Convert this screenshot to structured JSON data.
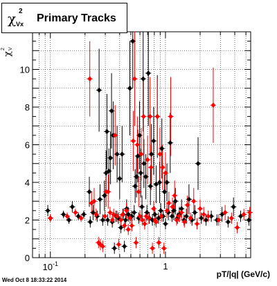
{
  "title": {
    "chi": "χ",
    "sup": "2",
    "sub": "Vx",
    "text": "Primary Tracks"
  },
  "ylabel": {
    "chi": "χ",
    "sup": "2",
    "sub": "V"
  },
  "xlabel": "pT/|q| (GeV/c)",
  "footer": "Wed Oct  8 18:33:22 2014",
  "chart_data": {
    "type": "scatter",
    "xscale": "log",
    "xlim": [
      0.07,
      5.5
    ],
    "ylim": [
      0,
      12
    ],
    "grid": true,
    "x_tick_labels": [
      {
        "x": 0.1,
        "label": "10⁻¹"
      },
      {
        "x": 1,
        "label": "1"
      }
    ],
    "y_tick_labels": [
      {
        "y": 0,
        "label": "0"
      },
      {
        "y": 2,
        "label": "2"
      },
      {
        "y": 4,
        "label": "4"
      },
      {
        "y": 6,
        "label": "6"
      },
      {
        "y": 8,
        "label": "8"
      },
      {
        "y": 10,
        "label": "10"
      }
    ],
    "series": [
      {
        "color": "#000000",
        "points": [
          [
            0.095,
            2.5,
            0.3
          ],
          [
            0.1,
            2.1,
            0.2
          ],
          [
            0.13,
            2.3,
            0.2
          ],
          [
            0.145,
            2.0,
            0.2
          ],
          [
            0.155,
            2.7,
            0.3
          ],
          [
            0.175,
            2.2,
            0.2
          ],
          [
            0.195,
            2.3,
            0.2
          ],
          [
            0.218,
            3.5,
            0.8
          ],
          [
            0.222,
            1.9,
            0.3
          ],
          [
            0.235,
            2.4,
            0.4
          ],
          [
            0.255,
            2.2,
            0.3
          ],
          [
            0.265,
            8.9,
            2.2
          ],
          [
            0.27,
            3.1,
            0.8
          ],
          [
            0.285,
            2.0,
            0.3
          ],
          [
            0.295,
            3.3,
            0.8
          ],
          [
            0.305,
            4.5,
            1.2
          ],
          [
            0.31,
            6.7,
            2.0
          ],
          [
            0.315,
            2.0,
            0.3
          ],
          [
            0.322,
            4.6,
            1.2
          ],
          [
            0.333,
            5.3,
            1.4
          ],
          [
            0.34,
            7.8,
            2.0
          ],
          [
            0.345,
            1.9,
            0.3
          ],
          [
            0.352,
            6.5,
            1.8
          ],
          [
            0.36,
            0.5,
            0.3
          ],
          [
            0.372,
            2.2,
            0.3
          ],
          [
            0.38,
            5.5,
            1.5
          ],
          [
            0.39,
            2.1,
            0.3
          ],
          [
            0.4,
            4.2,
            1.1
          ],
          [
            0.41,
            1.6,
            0.3
          ],
          [
            0.42,
            5.5,
            1.5
          ],
          [
            0.43,
            2.3,
            0.3
          ],
          [
            0.44,
            0.6,
            0.3
          ],
          [
            0.45,
            2.0,
            0.3
          ],
          [
            0.46,
            2.6,
            0.5
          ],
          [
            0.475,
            2.3,
            0.4
          ],
          [
            0.49,
            9.0,
            2.5
          ],
          [
            0.51,
            2.2,
            0.3
          ],
          [
            0.52,
            11.5,
            2.5
          ],
          [
            0.535,
            2.4,
            0.4
          ],
          [
            0.545,
            3.8,
            0.9
          ],
          [
            0.56,
            4.3,
            1.1
          ],
          [
            0.575,
            5.4,
            1.4
          ],
          [
            0.585,
            2.1,
            0.3
          ],
          [
            0.595,
            6.5,
            1.8
          ],
          [
            0.61,
            4.5,
            1.3
          ],
          [
            0.625,
            2.7,
            0.6
          ],
          [
            0.64,
            9.5,
            2.8
          ],
          [
            0.65,
            5.0,
            1.3
          ],
          [
            0.66,
            1.8,
            0.3
          ],
          [
            0.675,
            4.3,
            1.2
          ],
          [
            0.69,
            2.4,
            0.4
          ],
          [
            0.71,
            9.8,
            2.8
          ],
          [
            0.725,
            2.1,
            0.3
          ],
          [
            0.74,
            3.8,
            1.0
          ],
          [
            0.755,
            5.5,
            1.6
          ],
          [
            0.77,
            2.0,
            0.3
          ],
          [
            0.79,
            6.2,
            1.8
          ],
          [
            0.81,
            2.3,
            0.4
          ],
          [
            0.83,
            3.9,
            1.0
          ],
          [
            0.85,
            7.5,
            2.2
          ],
          [
            0.87,
            2.1,
            0.3
          ],
          [
            0.89,
            4.0,
            1.1
          ],
          [
            0.91,
            2.5,
            0.4
          ],
          [
            0.93,
            5.8,
            1.6
          ],
          [
            0.955,
            2.2,
            0.3
          ],
          [
            0.98,
            3.5,
            0.9
          ],
          [
            1.0,
            1.8,
            0.3
          ],
          [
            1.03,
            4.0,
            1.0
          ],
          [
            1.06,
            2.4,
            0.4
          ],
          [
            1.1,
            6.1,
            1.6
          ],
          [
            1.14,
            2.2,
            0.3
          ],
          [
            1.18,
            2.5,
            0.5
          ],
          [
            1.22,
            3.0,
            0.7
          ],
          [
            1.27,
            2.1,
            0.3
          ],
          [
            1.32,
            2.3,
            0.4
          ],
          [
            1.38,
            2.6,
            0.5
          ],
          [
            1.45,
            2.0,
            0.3
          ],
          [
            1.52,
            2.2,
            0.4
          ],
          [
            1.6,
            3.1,
            0.8
          ],
          [
            1.7,
            2.0,
            0.3
          ],
          [
            1.8,
            2.4,
            0.4
          ],
          [
            1.92,
            5.0,
            1.4
          ],
          [
            2.05,
            2.1,
            0.3
          ],
          [
            2.25,
            2.0,
            0.3
          ],
          [
            2.5,
            2.2,
            0.3
          ],
          [
            2.8,
            2.0,
            0.3
          ],
          [
            3.1,
            2.3,
            0.4
          ],
          [
            3.5,
            1.9,
            0.3
          ],
          [
            3.9,
            2.7,
            0.5
          ],
          [
            4.5,
            2.2,
            0.3
          ],
          [
            5.3,
            2.0,
            0.3
          ]
        ]
      },
      {
        "color": "#ff0000",
        "points": [
          [
            0.1,
            2.1,
            0.2
          ],
          [
            0.14,
            2.2,
            0.2
          ],
          [
            0.165,
            2.4,
            0.2
          ],
          [
            0.185,
            2.1,
            0.2
          ],
          [
            0.22,
            9.5,
            2.0
          ],
          [
            0.228,
            2.9,
            0.6
          ],
          [
            0.24,
            3.0,
            0.7
          ],
          [
            0.25,
            2.3,
            0.3
          ],
          [
            0.262,
            0.8,
            0.3
          ],
          [
            0.272,
            0.7,
            0.3
          ],
          [
            0.285,
            0.6,
            0.3
          ],
          [
            0.298,
            2.2,
            0.3
          ],
          [
            0.305,
            3.5,
            0.8
          ],
          [
            0.318,
            3.5,
            0.9
          ],
          [
            0.33,
            2.4,
            0.3
          ],
          [
            0.345,
            2.0,
            0.3
          ],
          [
            0.355,
            2.3,
            0.3
          ],
          [
            0.365,
            6.5,
            1.6
          ],
          [
            0.38,
            2.2,
            0.3
          ],
          [
            0.392,
            0.7,
            0.3
          ],
          [
            0.41,
            2.0,
            0.3
          ],
          [
            0.425,
            2.3,
            0.3
          ],
          [
            0.44,
            1.7,
            0.3
          ],
          [
            0.458,
            2.5,
            0.4
          ],
          [
            0.475,
            1.5,
            0.3
          ],
          [
            0.492,
            2.1,
            0.3
          ],
          [
            0.51,
            1.7,
            0.3
          ],
          [
            0.525,
            6.2,
            1.6
          ],
          [
            0.54,
            9.5,
            2.5
          ],
          [
            0.555,
            0.8,
            0.3
          ],
          [
            0.57,
            6.0,
            1.5
          ],
          [
            0.585,
            3.5,
            0.8
          ],
          [
            0.6,
            2.2,
            0.3
          ],
          [
            0.615,
            5.5,
            1.4
          ],
          [
            0.63,
            2.0,
            0.3
          ],
          [
            0.645,
            7.5,
            2.1
          ],
          [
            0.66,
            1.8,
            0.3
          ],
          [
            0.68,
            2.2,
            0.3
          ],
          [
            0.7,
            5.2,
            1.3
          ],
          [
            0.718,
            2.1,
            0.3
          ],
          [
            0.735,
            7.5,
            2.1
          ],
          [
            0.75,
            4.8,
            1.2
          ],
          [
            0.77,
            0.5,
            0.3
          ],
          [
            0.79,
            2.6,
            0.4
          ],
          [
            0.81,
            2.0,
            0.3
          ],
          [
            0.83,
            1.9,
            0.3
          ],
          [
            0.85,
            7.5,
            2.0
          ],
          [
            0.875,
            0.8,
            0.3
          ],
          [
            0.895,
            5.5,
            1.4
          ],
          [
            0.92,
            2.2,
            0.3
          ],
          [
            0.945,
            4.8,
            1.2
          ],
          [
            0.97,
            0.5,
            0.3
          ],
          [
            1.0,
            4.5,
            1.1
          ],
          [
            1.03,
            2.5,
            0.4
          ],
          [
            1.07,
            2.9,
            0.6
          ],
          [
            1.11,
            7.5,
            2.1
          ],
          [
            1.15,
            2.7,
            0.5
          ],
          [
            1.2,
            3.3,
            0.8
          ],
          [
            1.25,
            2.0,
            0.3
          ],
          [
            1.31,
            2.2,
            0.3
          ],
          [
            1.38,
            2.4,
            0.4
          ],
          [
            1.46,
            1.9,
            0.3
          ],
          [
            1.55,
            2.8,
            0.5
          ],
          [
            1.65,
            2.1,
            0.3
          ],
          [
            1.76,
            3.0,
            0.7
          ],
          [
            1.88,
            1.8,
            0.3
          ],
          [
            2.0,
            2.6,
            0.5
          ],
          [
            2.15,
            2.3,
            0.4
          ],
          [
            2.35,
            2.2,
            0.3
          ],
          [
            2.6,
            8.1,
            2.0
          ],
          [
            2.9,
            2.0,
            0.3
          ],
          [
            3.3,
            2.4,
            0.4
          ],
          [
            3.75,
            2.1,
            0.3
          ],
          [
            4.2,
            1.6,
            0.3
          ],
          [
            4.8,
            2.3,
            0.3
          ],
          [
            5.4,
            2.4,
            0.3
          ]
        ]
      }
    ]
  }
}
